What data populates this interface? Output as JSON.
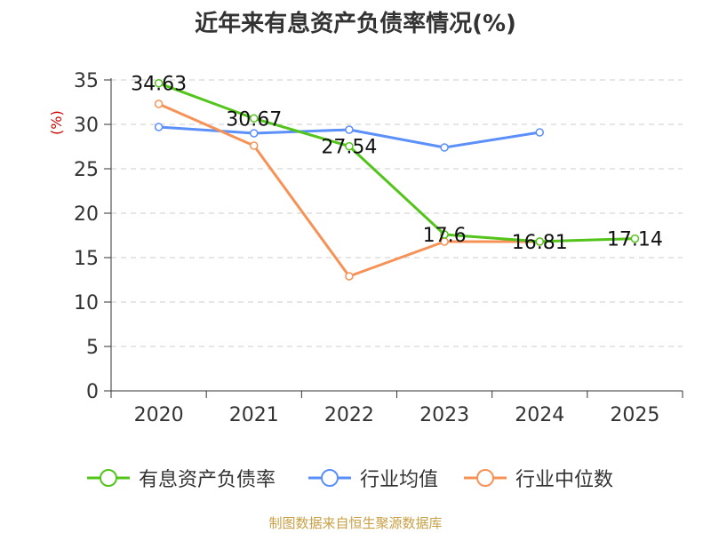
{
  "chart_data": {
    "type": "line",
    "title": "近年来有息资产负债率情况(%)",
    "ylabel": "(%)",
    "xlabel": "",
    "categories": [
      "2020",
      "2021",
      "2022",
      "2023",
      "2024",
      "2025"
    ],
    "ylim": [
      0,
      35
    ],
    "yticks": [
      0,
      5,
      10,
      15,
      20,
      25,
      30,
      35
    ],
    "grid": true,
    "legend_position": "bottom",
    "series": [
      {
        "name": "有息资产负债率",
        "color": "#52c41a",
        "values": [
          34.63,
          30.67,
          27.54,
          17.6,
          16.81,
          17.14
        ],
        "data_labels": [
          "34.63",
          "30.67",
          "27.54",
          "17.6",
          "16.81",
          "17.14"
        ]
      },
      {
        "name": "行业均值",
        "color": "#5b8ff9",
        "values": [
          29.7,
          29.0,
          29.4,
          27.4,
          29.1,
          null
        ]
      },
      {
        "name": "行业中位数",
        "color": "#f79256",
        "values": [
          32.3,
          27.6,
          12.9,
          16.8,
          16.8,
          null
        ]
      }
    ]
  },
  "source": "制图数据来自恒生聚源数据库"
}
